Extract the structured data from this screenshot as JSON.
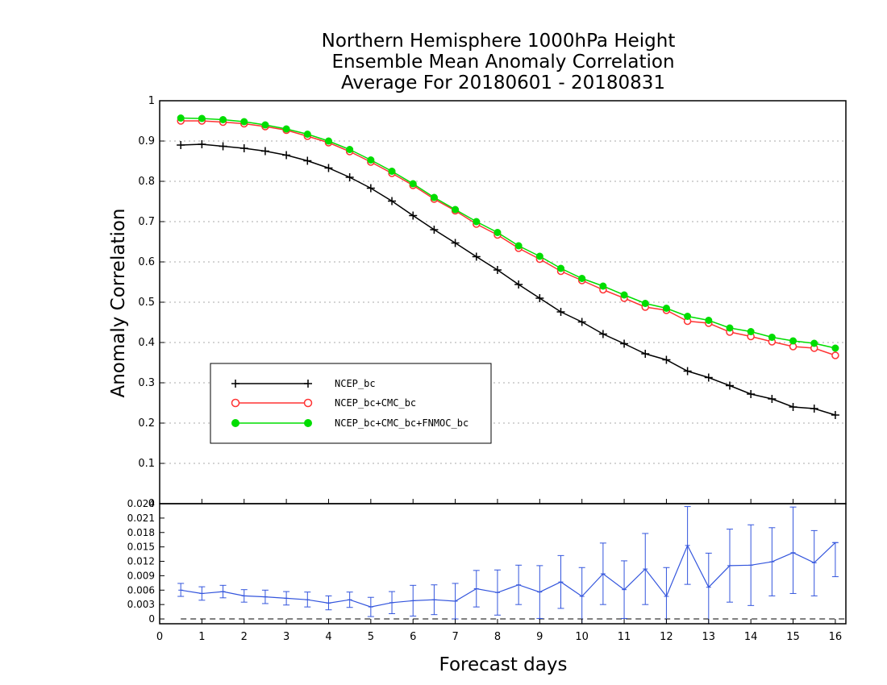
{
  "chart_data": [
    {
      "type": "line",
      "title_lines": [
        "Northern Hemisphere 1000hPa Height",
        "Ensemble Mean Anomaly Correlation",
        "Average For 20180601 - 20180831"
      ],
      "xlabel": "",
      "ylabel": "Anomaly Correlation",
      "xlim": [
        0,
        16.25
      ],
      "ylim": [
        0,
        1
      ],
      "y_ticks": [
        "0",
        "0.1",
        "0.2",
        "0.3",
        "0.4",
        "0.5",
        "0.6",
        "0.7",
        "0.8",
        "0.9",
        "1"
      ],
      "grid": "horizontal dotted",
      "legend_position": "left-middle",
      "x": [
        0.5,
        1,
        1.5,
        2,
        2.5,
        3,
        3.5,
        4,
        4.5,
        5,
        5.5,
        6,
        6.5,
        7,
        7.5,
        8,
        8.5,
        9,
        9.5,
        10,
        10.5,
        11,
        11.5,
        12,
        12.5,
        13,
        13.5,
        14,
        14.5,
        15,
        15.5,
        16
      ],
      "series": [
        {
          "name": "NCEP_bc",
          "color": "#000000",
          "marker": "plus",
          "values": [
            0.89,
            0.892,
            0.887,
            0.882,
            0.875,
            0.865,
            0.851,
            0.833,
            0.81,
            0.783,
            0.751,
            0.715,
            0.68,
            0.647,
            0.613,
            0.58,
            0.544,
            0.51,
            0.476,
            0.451,
            0.421,
            0.397,
            0.372,
            0.357,
            0.329,
            0.313,
            0.293,
            0.272,
            0.26,
            0.24,
            0.236,
            0.22
          ]
        },
        {
          "name": "NCEP_bc+CMC_bc",
          "color": "#ff3333",
          "marker": "open-circle",
          "values": [
            0.95,
            0.95,
            0.947,
            0.943,
            0.936,
            0.927,
            0.912,
            0.896,
            0.874,
            0.848,
            0.82,
            0.79,
            0.756,
            0.727,
            0.694,
            0.667,
            0.634,
            0.607,
            0.577,
            0.554,
            0.531,
            0.51,
            0.488,
            0.48,
            0.453,
            0.448,
            0.426,
            0.415,
            0.402,
            0.39,
            0.386,
            0.368
          ]
        },
        {
          "name": "NCEP_bc+CMC_bc+FNMOC_bc",
          "color": "#00dd00",
          "marker": "filled-circle",
          "values": [
            0.957,
            0.956,
            0.953,
            0.948,
            0.94,
            0.93,
            0.917,
            0.9,
            0.879,
            0.853,
            0.825,
            0.794,
            0.76,
            0.73,
            0.7,
            0.673,
            0.64,
            0.614,
            0.584,
            0.559,
            0.54,
            0.518,
            0.497,
            0.485,
            0.465,
            0.455,
            0.436,
            0.427,
            0.413,
            0.404,
            0.398,
            0.386
          ]
        }
      ]
    },
    {
      "type": "line",
      "title": "",
      "xlabel": "Forecast days",
      "ylabel": "",
      "xlim": [
        0,
        16.25
      ],
      "ylim": [
        -0.001,
        0.024
      ],
      "x_ticks": [
        "0",
        "1",
        "2",
        "3",
        "4",
        "5",
        "6",
        "7",
        "8",
        "9",
        "10",
        "11",
        "12",
        "13",
        "14",
        "15",
        "16"
      ],
      "y_ticks": [
        "0",
        "0.003",
        "0.006",
        "0.009",
        "0.012",
        "0.015",
        "0.018",
        "0.021",
        "0.024"
      ],
      "reference_line": 0,
      "x": [
        0.5,
        1,
        1.5,
        2,
        2.5,
        3,
        3.5,
        4,
        4.5,
        5,
        5.5,
        6,
        6.5,
        7,
        7.5,
        8,
        8.5,
        9,
        9.5,
        10,
        10.5,
        11,
        11.5,
        12,
        12.5,
        13,
        13.5,
        14,
        14.5,
        15,
        15.5,
        16
      ],
      "series": [
        {
          "name": "",
          "color": "#3355dd",
          "values": [
            0.006,
            0.0053,
            0.0057,
            0.0048,
            0.0046,
            0.0043,
            0.004,
            0.0033,
            0.004,
            0.0025,
            0.0034,
            0.0038,
            0.004,
            0.0037,
            0.0063,
            0.0055,
            0.0071,
            0.0056,
            0.0077,
            0.0047,
            0.0094,
            0.0061,
            0.0104,
            0.0047,
            0.0153,
            0.0066,
            0.0111,
            0.0112,
            0.0119,
            0.0138,
            0.0117,
            0.0159
          ],
          "error_low": [
            0.0047,
            0.0039,
            0.0044,
            0.0035,
            0.0032,
            0.0029,
            0.0025,
            0.0019,
            0.0024,
            0.0005,
            0.0011,
            0.0006,
            0.0009,
            0.0,
            0.0025,
            0.0008,
            0.003,
            0.0001,
            0.0022,
            -0.0013,
            0.003,
            0.0001,
            0.003,
            -0.0013,
            0.0072,
            -0.0011,
            0.0035,
            0.0028,
            0.0048,
            0.0053,
            0.0048,
            0.0088
          ],
          "error_high": [
            0.0074,
            0.0067,
            0.007,
            0.0061,
            0.006,
            0.0057,
            0.0056,
            0.0048,
            0.0056,
            0.0045,
            0.0057,
            0.007,
            0.0071,
            0.0074,
            0.0101,
            0.0102,
            0.0112,
            0.0111,
            0.0132,
            0.0107,
            0.0158,
            0.0121,
            0.0178,
            0.0107,
            0.0234,
            0.0137,
            0.0187,
            0.0196,
            0.019,
            0.0233,
            0.0184,
            0.0159
          ]
        }
      ]
    }
  ]
}
